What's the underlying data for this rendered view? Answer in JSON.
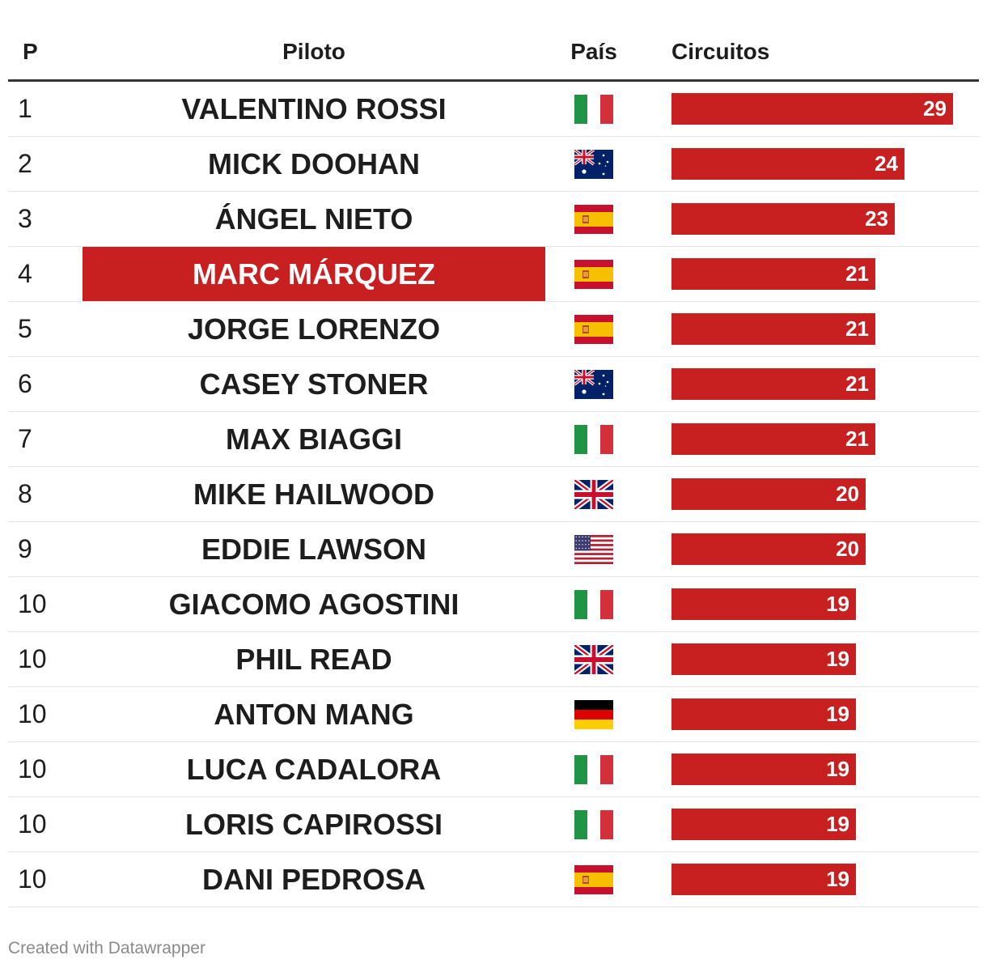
{
  "table": {
    "headers": {
      "p": "P",
      "piloto": "Piloto",
      "pais": "País",
      "circuitos": "Circuitos"
    },
    "rows": [
      {
        "p": "1",
        "piloto": "VALENTINO ROSSI",
        "flag": "italy-flag",
        "circuitos": 29,
        "highlight": false
      },
      {
        "p": "2",
        "piloto": "MICK DOOHAN",
        "flag": "australia-flag",
        "circuitos": 24,
        "highlight": false
      },
      {
        "p": "3",
        "piloto": "ÁNGEL NIETO",
        "flag": "spain-flag",
        "circuitos": 23,
        "highlight": false
      },
      {
        "p": "4",
        "piloto": "MARC MÁRQUEZ",
        "flag": "spain-flag",
        "circuitos": 21,
        "highlight": true
      },
      {
        "p": "5",
        "piloto": "JORGE LORENZO",
        "flag": "spain-flag",
        "circuitos": 21,
        "highlight": false
      },
      {
        "p": "6",
        "piloto": "CASEY STONER",
        "flag": "australia-flag",
        "circuitos": 21,
        "highlight": false
      },
      {
        "p": "7",
        "piloto": "MAX BIAGGI",
        "flag": "italy-flag",
        "circuitos": 21,
        "highlight": false
      },
      {
        "p": "8",
        "piloto": "MIKE HAILWOOD",
        "flag": "uk-flag",
        "circuitos": 20,
        "highlight": false
      },
      {
        "p": "9",
        "piloto": "EDDIE LAWSON",
        "flag": "usa-flag",
        "circuitos": 20,
        "highlight": false
      },
      {
        "p": "10",
        "piloto": "GIACOMO AGOSTINI",
        "flag": "italy-flag",
        "circuitos": 19,
        "highlight": false
      },
      {
        "p": "10",
        "piloto": "PHIL READ",
        "flag": "uk-flag",
        "circuitos": 19,
        "highlight": false
      },
      {
        "p": "10",
        "piloto": "ANTON MANG",
        "flag": "germany-flag",
        "circuitos": 19,
        "highlight": false
      },
      {
        "p": "10",
        "piloto": "LUCA CADALORA",
        "flag": "italy-flag",
        "circuitos": 19,
        "highlight": false
      },
      {
        "p": "10",
        "piloto": "LORIS CAPIROSSI",
        "flag": "italy-flag",
        "circuitos": 19,
        "highlight": false
      },
      {
        "p": "10",
        "piloto": "DANI PEDROSA",
        "flag": "spain-flag",
        "circuitos": 19,
        "highlight": false
      }
    ]
  },
  "footer": {
    "credit": "Created with Datawrapper"
  },
  "colors": {
    "bar": "#c81f20",
    "highlight": "#c81f20",
    "text": "#1d1d1d",
    "muted": "#8a8a8a"
  },
  "chart_data": {
    "type": "table",
    "columns": [
      "P",
      "Piloto",
      "País",
      "Circuitos"
    ],
    "categories": [
      "VALENTINO ROSSI",
      "MICK DOOHAN",
      "ÁNGEL NIETO",
      "MARC MÁRQUEZ",
      "JORGE LORENZO",
      "CASEY STONER",
      "MAX BIAGGI",
      "MIKE HAILWOOD",
      "EDDIE LAWSON",
      "GIACOMO AGOSTINI",
      "PHIL READ",
      "ANTON MANG",
      "LUCA CADALORA",
      "LORIS CAPIROSSI",
      "DANI PEDROSA"
    ],
    "positions": [
      "1",
      "2",
      "3",
      "4",
      "5",
      "6",
      "7",
      "8",
      "9",
      "10",
      "10",
      "10",
      "10",
      "10",
      "10"
    ],
    "countries": [
      "Italy",
      "Australia",
      "Spain",
      "Spain",
      "Spain",
      "Australia",
      "Italy",
      "United Kingdom",
      "United States",
      "Italy",
      "United Kingdom",
      "Germany",
      "Italy",
      "Italy",
      "Spain"
    ],
    "values": [
      29,
      24,
      23,
      21,
      21,
      21,
      21,
      20,
      20,
      19,
      19,
      19,
      19,
      19,
      19
    ],
    "bar_max": 29,
    "highlighted_row": "MARC MÁRQUEZ"
  }
}
